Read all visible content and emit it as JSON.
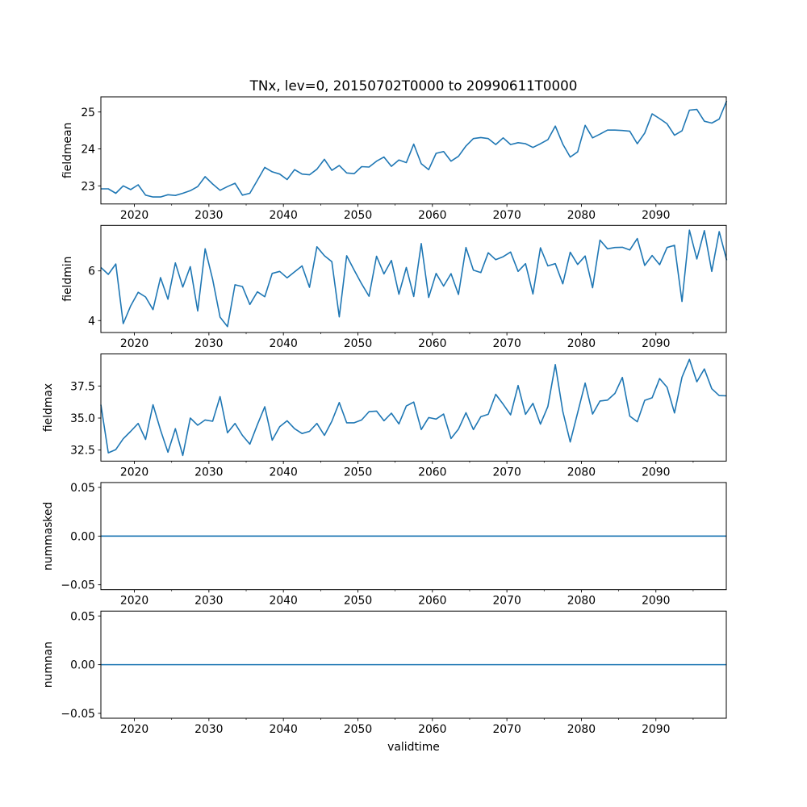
{
  "chart_data": {
    "type": "line",
    "title": "TNx, lev=0, 20150702T0000 to 20990611T0000",
    "xlabel": "validtime",
    "x_start": 2015.5,
    "x_step": 1,
    "xlim": [
      2015.5,
      2099.45
    ],
    "x_major_ticks": [
      2020,
      2030,
      2040,
      2050,
      2060,
      2070,
      2080,
      2090
    ],
    "x_minor_ticks": [
      2025,
      2035,
      2045,
      2055,
      2065,
      2075,
      2085,
      2095
    ],
    "line_color": "#1f77b4",
    "grid": false,
    "panels": [
      {
        "ylabel": "fieldmean",
        "ylim": [
          22.51,
          25.41
        ],
        "yticks": [
          23,
          24,
          25
        ],
        "ytick_labels": [
          "23",
          "24",
          "25"
        ],
        "values": [
          22.92,
          22.92,
          22.8,
          23.0,
          22.9,
          23.03,
          22.75,
          22.7,
          22.7,
          22.76,
          22.74,
          22.8,
          22.87,
          22.98,
          23.25,
          23.05,
          22.88,
          22.98,
          23.07,
          22.75,
          22.8,
          23.15,
          23.5,
          23.38,
          23.32,
          23.17,
          23.44,
          23.32,
          23.3,
          23.45,
          23.72,
          23.42,
          23.55,
          23.35,
          23.33,
          23.52,
          23.51,
          23.67,
          23.78,
          23.53,
          23.7,
          23.63,
          24.13,
          23.6,
          23.44,
          23.88,
          23.93,
          23.67,
          23.8,
          24.08,
          24.28,
          24.31,
          24.28,
          24.12,
          24.3,
          24.12,
          24.17,
          24.14,
          24.04,
          24.14,
          24.25,
          24.62,
          24.13,
          23.78,
          23.92,
          24.64,
          24.3,
          24.4,
          24.51,
          24.51,
          24.5,
          24.48,
          24.14,
          24.43,
          24.95,
          24.82,
          24.68,
          24.37,
          24.49,
          25.05,
          25.07,
          24.75,
          24.7,
          24.81,
          25.3
        ]
      },
      {
        "ylabel": "fieldmin",
        "ylim": [
          3.52,
          7.83
        ],
        "yticks": [
          4,
          6
        ],
        "ytick_labels": [
          "4",
          "6"
        ],
        "values": [
          6.14,
          5.86,
          6.28,
          3.88,
          4.59,
          5.14,
          4.95,
          4.44,
          5.73,
          4.86,
          6.32,
          5.35,
          6.17,
          4.39,
          6.89,
          5.66,
          4.14,
          3.76,
          5.44,
          5.37,
          4.65,
          5.16,
          4.96,
          5.9,
          5.98,
          5.72,
          5.96,
          6.2,
          5.34,
          6.97,
          6.61,
          6.37,
          4.15,
          6.61,
          6.03,
          5.48,
          4.98,
          6.59,
          5.88,
          6.42,
          5.06,
          6.14,
          4.97,
          7.1,
          4.93,
          5.9,
          5.39,
          5.89,
          5.05,
          6.94,
          6.03,
          5.93,
          6.73,
          6.45,
          6.57,
          6.76,
          5.98,
          6.29,
          5.07,
          6.93,
          6.2,
          6.29,
          5.48,
          6.75,
          6.26,
          6.6,
          5.32,
          7.24,
          6.89,
          6.94,
          6.95,
          6.84,
          7.3,
          6.22,
          6.62,
          6.25,
          6.94,
          7.03,
          4.77,
          7.64,
          6.48,
          7.62,
          5.98,
          7.58,
          6.43
        ]
      },
      {
        "ylabel": "fieldmax",
        "ylim": [
          31.64,
          40.0
        ],
        "yticks": [
          32.5,
          35.0,
          37.5
        ],
        "ytick_labels": [
          "32.5",
          "35.0",
          "37.5"
        ],
        "values": [
          36.04,
          32.29,
          32.54,
          33.38,
          33.96,
          34.58,
          33.33,
          36.04,
          34.06,
          32.33,
          34.17,
          32.08,
          35.0,
          34.44,
          34.85,
          34.75,
          36.67,
          33.85,
          34.58,
          33.65,
          32.96,
          34.48,
          35.88,
          33.27,
          34.33,
          34.79,
          34.17,
          33.79,
          33.96,
          34.58,
          33.65,
          34.75,
          36.21,
          34.63,
          34.63,
          34.85,
          35.5,
          35.54,
          34.79,
          35.38,
          34.54,
          35.94,
          36.25,
          34.1,
          35.04,
          34.92,
          35.31,
          33.4,
          34.13,
          35.42,
          34.1,
          35.1,
          35.29,
          36.85,
          36.08,
          35.25,
          37.54,
          35.29,
          36.15,
          34.52,
          35.9,
          39.17,
          35.52,
          33.13,
          35.42,
          37.73,
          35.31,
          36.33,
          36.4,
          36.92,
          38.17,
          35.15,
          34.71,
          36.38,
          36.58,
          38.08,
          37.4,
          35.4,
          38.19,
          39.58,
          37.83,
          38.83,
          37.29,
          36.75,
          36.73
        ]
      },
      {
        "ylabel": "nummasked",
        "ylim": [
          -0.055,
          0.055
        ],
        "yticks": [
          -0.05,
          0.0,
          0.05
        ],
        "ytick_labels": [
          "−0.05",
          "0.00",
          "0.05"
        ],
        "constant_value": 0
      },
      {
        "ylabel": "numnan",
        "ylim": [
          -0.055,
          0.055
        ],
        "yticks": [
          -0.05,
          0.0,
          0.05
        ],
        "ytick_labels": [
          "−0.05",
          "0.00",
          "0.05"
        ],
        "constant_value": 0
      }
    ]
  }
}
